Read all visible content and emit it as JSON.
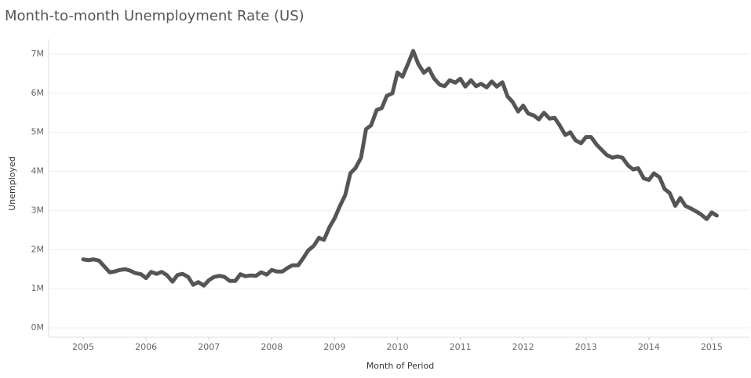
{
  "chart_data": {
    "type": "line",
    "title": "Month-to-month Unemployment Rate (US)",
    "x_label": "Month of Period",
    "y_label": "Unemployed",
    "x": [
      2005.0,
      2005.08,
      2005.17,
      2005.25,
      2005.33,
      2005.42,
      2005.5,
      2005.58,
      2005.67,
      2005.75,
      2005.83,
      2005.92,
      2006.0,
      2006.08,
      2006.17,
      2006.25,
      2006.33,
      2006.42,
      2006.5,
      2006.58,
      2006.67,
      2006.75,
      2006.83,
      2006.92,
      2007.0,
      2007.08,
      2007.17,
      2007.25,
      2007.33,
      2007.42,
      2007.5,
      2007.58,
      2007.67,
      2007.75,
      2007.83,
      2007.92,
      2008.0,
      2008.08,
      2008.17,
      2008.25,
      2008.33,
      2008.42,
      2008.5,
      2008.58,
      2008.67,
      2008.75,
      2008.83,
      2008.92,
      2009.0,
      2009.08,
      2009.17,
      2009.25,
      2009.33,
      2009.42,
      2009.5,
      2009.58,
      2009.67,
      2009.75,
      2009.83,
      2009.92,
      2010.0,
      2010.08,
      2010.17,
      2010.25,
      2010.33,
      2010.42,
      2010.5,
      2010.58,
      2010.67,
      2010.75,
      2010.83,
      2010.92,
      2011.0,
      2011.08,
      2011.17,
      2011.25,
      2011.33,
      2011.42,
      2011.5,
      2011.58,
      2011.67,
      2011.75,
      2011.83,
      2011.92,
      2012.0,
      2012.08,
      2012.17,
      2012.25,
      2012.33,
      2012.42,
      2012.5,
      2012.58,
      2012.67,
      2012.75,
      2012.83,
      2012.92,
      2013.0,
      2013.08,
      2013.17,
      2013.25,
      2013.33,
      2013.42,
      2013.5,
      2013.58,
      2013.67,
      2013.75,
      2013.83,
      2013.92,
      2014.0,
      2014.08,
      2014.17,
      2014.25,
      2014.33,
      2014.42,
      2014.5,
      2014.58,
      2014.67,
      2014.75,
      2014.83,
      2014.92,
      2015.0,
      2015.08
    ],
    "series": [
      {
        "color": "#555555",
        "values": [
          1750000,
          1730000,
          1750000,
          1720000,
          1580000,
          1420000,
          1440000,
          1480000,
          1500000,
          1460000,
          1400000,
          1370000,
          1270000,
          1430000,
          1380000,
          1430000,
          1350000,
          1180000,
          1350000,
          1380000,
          1300000,
          1100000,
          1170000,
          1080000,
          1220000,
          1300000,
          1330000,
          1300000,
          1200000,
          1200000,
          1370000,
          1320000,
          1340000,
          1330000,
          1420000,
          1360000,
          1480000,
          1440000,
          1440000,
          1530000,
          1600000,
          1600000,
          1780000,
          1980000,
          2100000,
          2300000,
          2250000,
          2580000,
          2800000,
          3100000,
          3400000,
          3950000,
          4080000,
          4350000,
          5080000,
          5180000,
          5570000,
          5620000,
          5930000,
          6000000,
          6530000,
          6420000,
          6760000,
          7080000,
          6750000,
          6520000,
          6630000,
          6380000,
          6220000,
          6180000,
          6330000,
          6270000,
          6370000,
          6170000,
          6330000,
          6180000,
          6240000,
          6150000,
          6300000,
          6170000,
          6280000,
          5920000,
          5780000,
          5530000,
          5680000,
          5480000,
          5430000,
          5330000,
          5500000,
          5350000,
          5370000,
          5180000,
          4930000,
          5000000,
          4800000,
          4720000,
          4880000,
          4880000,
          4680000,
          4550000,
          4420000,
          4350000,
          4380000,
          4350000,
          4150000,
          4050000,
          4080000,
          3820000,
          3780000,
          3950000,
          3850000,
          3550000,
          3450000,
          3120000,
          3320000,
          3120000,
          3050000,
          2980000,
          2900000,
          2780000,
          2950000,
          2870000
        ]
      }
    ],
    "xlim": [
      2004.45,
      2015.6
    ],
    "xticks": [
      2005,
      2006,
      2007,
      2008,
      2009,
      2010,
      2011,
      2012,
      2013,
      2014,
      2015
    ],
    "ylim": [
      -240000,
      7380000
    ],
    "yticks": [
      {
        "value": 0,
        "label": "0M"
      },
      {
        "value": 1000000,
        "label": "1M"
      },
      {
        "value": 2000000,
        "label": "2M"
      },
      {
        "value": 3000000,
        "label": "3M"
      },
      {
        "value": 4000000,
        "label": "4M"
      },
      {
        "value": 5000000,
        "label": "5M"
      },
      {
        "value": 6000000,
        "label": "6M"
      },
      {
        "value": 7000000,
        "label": "7M"
      }
    ],
    "grid": true
  }
}
